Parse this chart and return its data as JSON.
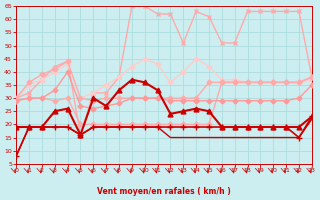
{
  "xlabel": "Vent moyen/en rafales ( km/h )",
  "bg_color": "#cceef0",
  "grid_color": "#aadddd",
  "xlim": [
    0,
    23
  ],
  "ylim": [
    5,
    65
  ],
  "yticks": [
    5,
    10,
    15,
    20,
    25,
    30,
    35,
    40,
    45,
    50,
    55,
    60,
    65
  ],
  "xticks": [
    0,
    1,
    2,
    3,
    4,
    5,
    6,
    7,
    8,
    9,
    10,
    11,
    12,
    13,
    14,
    15,
    16,
    17,
    18,
    19,
    20,
    21,
    22,
    23
  ],
  "series": [
    {
      "name": "rafales_high",
      "y": [
        30,
        32,
        37,
        42,
        44,
        16,
        32,
        32,
        38,
        65,
        65,
        62,
        62,
        51,
        63,
        61,
        51,
        51,
        63,
        63,
        63,
        63,
        63,
        38
      ],
      "color": "#ffaaaa",
      "lw": 1.0,
      "marker": "x",
      "ms": 3,
      "zorder": 2
    },
    {
      "name": "rafales_mid",
      "y": [
        30,
        36,
        39,
        41,
        44,
        30,
        29,
        30,
        30,
        30,
        30,
        30,
        30,
        30,
        30,
        36,
        36,
        36,
        36,
        36,
        36,
        36,
        36,
        38
      ],
      "color": "#ffaaaa",
      "lw": 1.0,
      "marker": "D",
      "ms": 2.5,
      "zorder": 3
    },
    {
      "name": "moyen_high",
      "y": [
        29,
        30,
        30,
        29,
        30,
        20,
        20,
        20,
        20,
        20,
        20,
        20,
        20,
        20,
        20,
        20,
        36,
        36,
        36,
        36,
        36,
        36,
        36,
        38
      ],
      "color": "#ffaaaa",
      "lw": 1.0,
      "marker": "D",
      "ms": 2.5,
      "zorder": 3
    },
    {
      "name": "line_dark_triangles",
      "y": [
        19,
        19,
        19,
        25,
        26,
        16,
        30,
        27,
        33,
        37,
        36,
        33,
        24,
        25,
        26,
        25,
        19,
        19,
        19,
        19,
        19,
        19,
        19,
        23
      ],
      "color": "#cc0000",
      "lw": 1.5,
      "marker": "^",
      "ms": 3.5,
      "zorder": 6
    },
    {
      "name": "line_dark_flat",
      "y": [
        8,
        19,
        19,
        19,
        19,
        16,
        19,
        19,
        19,
        19,
        19,
        19,
        19,
        19,
        19,
        19,
        19,
        19,
        19,
        19,
        19,
        19,
        15,
        23
      ],
      "color": "#cc0000",
      "lw": 1.2,
      "marker": "+",
      "ms": 4,
      "zorder": 5
    },
    {
      "name": "line_dark_flat2",
      "y": [
        8,
        19,
        19,
        19,
        19,
        16,
        19,
        19,
        19,
        19,
        19,
        19,
        15,
        15,
        15,
        15,
        15,
        15,
        15,
        15,
        15,
        15,
        15,
        22
      ],
      "color": "#cc0000",
      "lw": 1.0,
      "marker": null,
      "ms": 0,
      "zorder": 4
    },
    {
      "name": "line_pink_diagonal",
      "y": [
        29,
        30,
        30,
        33,
        40,
        27,
        26,
        27,
        28,
        30,
        30,
        30,
        29,
        29,
        29,
        29,
        29,
        29,
        29,
        29,
        29,
        29,
        30,
        35
      ],
      "color": "#ff9999",
      "lw": 1.0,
      "marker": "D",
      "ms": 2.5,
      "zorder": 3
    },
    {
      "name": "line_light_pink_rising",
      "y": [
        30,
        35,
        37,
        40,
        43,
        30,
        32,
        35,
        38,
        42,
        45,
        43,
        36,
        40,
        45,
        42,
        37,
        37,
        36,
        36,
        36,
        36,
        36,
        37
      ],
      "color": "#ffcccc",
      "lw": 1.0,
      "marker": "D",
      "ms": 2.5,
      "zorder": 2
    }
  ],
  "arrows_x": [
    0,
    1,
    2,
    3,
    4,
    5,
    6,
    7,
    8,
    9,
    10,
    11,
    12,
    13,
    14,
    15,
    16,
    17,
    18,
    19,
    20,
    21,
    22,
    23
  ]
}
